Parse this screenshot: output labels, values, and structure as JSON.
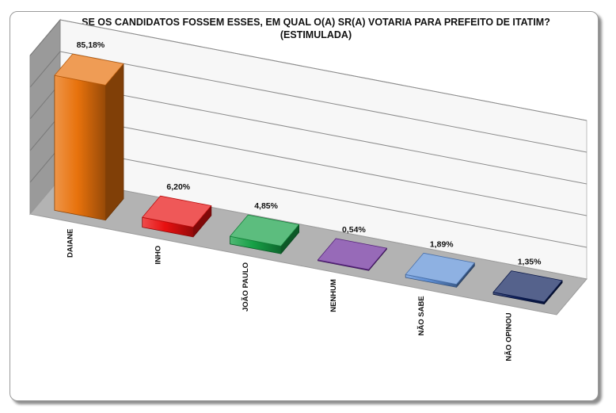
{
  "chart": {
    "title_line1": "SE OS CANDIDATOS FOSSEM ESSES, EM QUAL O(A) SR(A) VOTARIA PARA PREFEITO DE ITATIM?",
    "title_line2": "(ESTIMULADA)"
  },
  "chart_data": {
    "type": "bar",
    "title": "SE OS CANDIDATOS FOSSEM ESSES, EM QUAL O(A) SR(A) VOTARIA PARA PREFEITO DE ITATIM? (ESTIMULADA)",
    "categories": [
      "DAIANE",
      "INHO",
      "JOÃO PAULO",
      "NENHUM",
      "NÃO SABE",
      "NÃO OPINOU"
    ],
    "values": [
      85.18,
      6.2,
      4.85,
      0.54,
      1.89,
      1.35
    ],
    "value_labels": [
      "85,18%",
      "6,20%",
      "4,85%",
      "0,54%",
      "1,89%",
      "1,35%"
    ],
    "colors": [
      "#E8720C",
      "#E81010",
      "#16A046",
      "#6A2A9A",
      "#5E8FD6",
      "#0C1E5A"
    ],
    "ylim": [
      0,
      100
    ],
    "grid": true,
    "legend": "none",
    "style": "3d"
  }
}
